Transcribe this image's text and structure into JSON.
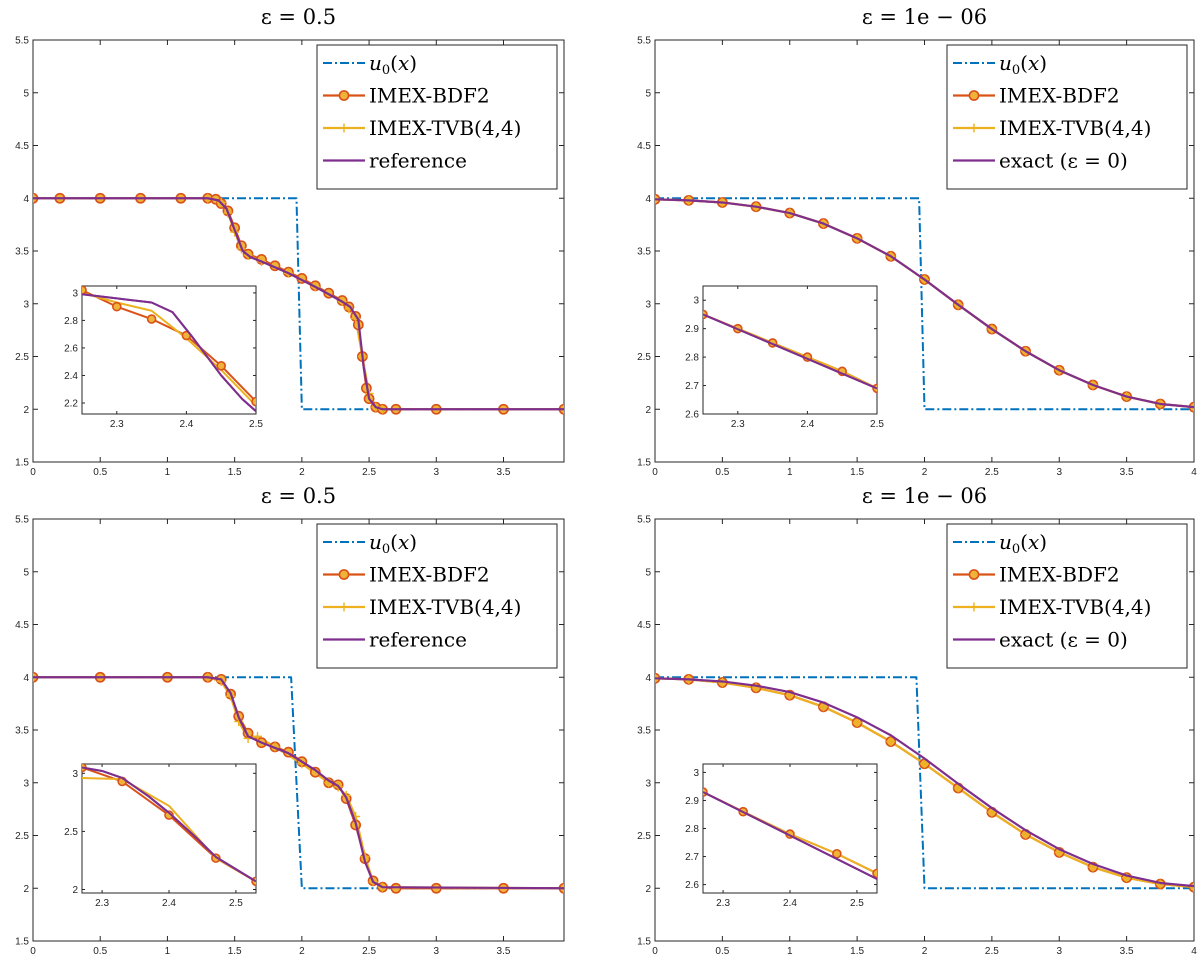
{
  "colors": {
    "u0": "#0072bd",
    "bdf2": "#d95319",
    "bdf2_marker_face": "#f0b33a",
    "tvb": "#edb120",
    "ref": "#7e2f8e"
  },
  "chart_data": [
    {
      "type": "line",
      "title": "ε = 0.5",
      "xlim": [
        0,
        3.95
      ],
      "ylim": [
        1.5,
        5.5
      ],
      "xticks": [
        0,
        0.5,
        1,
        1.5,
        2,
        2.5,
        3,
        3.5
      ],
      "yticks": [
        1.5,
        2,
        2.5,
        3,
        3.5,
        4,
        4.5,
        5,
        5.5
      ],
      "legend": {
        "position": "top-right",
        "entries": [
          "u0(x)",
          "IMEX-BDF2",
          "IMEX-TVB(4,4)",
          "reference"
        ]
      },
      "series": [
        {
          "name": "u0(x)",
          "style": "dashdot",
          "x": [
            0,
            1.96,
            1.96,
            2.0,
            2.0,
            3.95
          ],
          "y": [
            4,
            4,
            4,
            2,
            2,
            2
          ]
        },
        {
          "name": "IMEX-BDF2",
          "style": "line-circle",
          "x": [
            0,
            0.2,
            0.5,
            0.8,
            1.1,
            1.3,
            1.36,
            1.4,
            1.45,
            1.5,
            1.55,
            1.6,
            1.7,
            1.8,
            1.9,
            2.0,
            2.1,
            2.2,
            2.3,
            2.35,
            2.4,
            2.42,
            2.45,
            2.48,
            2.5,
            2.55,
            2.6,
            2.7,
            3.0,
            3.5,
            3.95
          ],
          "y": [
            4,
            4,
            4,
            4,
            4,
            4,
            3.99,
            3.95,
            3.88,
            3.72,
            3.55,
            3.47,
            3.42,
            3.36,
            3.3,
            3.24,
            3.17,
            3.1,
            3.03,
            2.97,
            2.88,
            2.8,
            2.5,
            2.2,
            2.1,
            2.02,
            2.0,
            2.0,
            2.0,
            2.0,
            2.0
          ]
        },
        {
          "name": "IMEX-TVB(4,4)",
          "style": "line-plus",
          "x": [
            0,
            1.3,
            1.4,
            1.45,
            1.5,
            1.55,
            1.6,
            1.7,
            1.9,
            2.1,
            2.3,
            2.35,
            2.4,
            2.45,
            2.5,
            2.55,
            2.6,
            3.95
          ],
          "y": [
            4,
            4,
            3.96,
            3.86,
            3.68,
            3.52,
            3.46,
            3.4,
            3.29,
            3.16,
            3.02,
            2.95,
            2.86,
            2.5,
            2.15,
            2.02,
            2.0,
            2.0
          ]
        },
        {
          "name": "reference",
          "style": "line",
          "x": [
            0,
            1.3,
            1.38,
            1.44,
            1.5,
            1.56,
            1.62,
            1.7,
            1.9,
            2.1,
            2.3,
            2.36,
            2.42,
            2.46,
            2.5,
            2.55,
            2.6,
            3.95
          ],
          "y": [
            4,
            4,
            3.98,
            3.9,
            3.7,
            3.5,
            3.44,
            3.4,
            3.29,
            3.16,
            3.02,
            2.97,
            2.85,
            2.4,
            2.1,
            2.02,
            2.0,
            2.0
          ]
        }
      ],
      "inset": {
        "xlim": [
          2.25,
          2.5
        ],
        "ylim": [
          2.12,
          3.05
        ],
        "xticks": [
          2.3,
          2.4,
          2.5
        ],
        "yticks": [
          2.2,
          2.4,
          2.6,
          2.8,
          3
        ],
        "series": [
          {
            "name": "IMEX-BDF2",
            "x": [
              2.25,
              2.3,
              2.35,
              2.4,
              2.45,
              2.5
            ],
            "y": [
              3.02,
              2.9,
              2.81,
              2.69,
              2.47,
              2.21
            ]
          },
          {
            "name": "IMEX-TVB(4,4)",
            "x": [
              2.25,
              2.3,
              2.35,
              2.4,
              2.45,
              2.5
            ],
            "y": [
              3.0,
              2.93,
              2.87,
              2.67,
              2.44,
              2.18
            ]
          },
          {
            "name": "reference",
            "x": [
              2.25,
              2.3,
              2.35,
              2.38,
              2.41,
              2.45,
              2.48,
              2.5
            ],
            "y": [
              2.99,
              2.96,
              2.93,
              2.86,
              2.67,
              2.4,
              2.23,
              2.14
            ]
          }
        ]
      }
    },
    {
      "type": "line",
      "title": "ε = 1e − 06",
      "xlim": [
        0,
        4
      ],
      "ylim": [
        1.5,
        5.5
      ],
      "xticks": [
        0,
        0.5,
        1,
        1.5,
        2,
        2.5,
        3,
        3.5,
        4
      ],
      "yticks": [
        1.5,
        2,
        2.5,
        3,
        3.5,
        4,
        4.5,
        5,
        5.5
      ],
      "legend": {
        "position": "top-right",
        "entries": [
          "u0(x)",
          "IMEX-BDF2",
          "IMEX-TVB(4,4)",
          "exact (ε = 0)"
        ]
      },
      "series": [
        {
          "name": "u0(x)",
          "style": "dashdot",
          "x": [
            0,
            1.96,
            1.96,
            2.0,
            2.0,
            4
          ],
          "y": [
            4,
            4,
            4,
            2,
            2,
            2
          ]
        },
        {
          "name": "IMEX-BDF2",
          "style": "line-circle",
          "x": [
            0,
            0.25,
            0.5,
            0.75,
            1.0,
            1.25,
            1.5,
            1.75,
            2.0,
            2.25,
            2.5,
            2.75,
            3.0,
            3.25,
            3.5,
            3.75,
            4.0
          ],
          "y": [
            3.99,
            3.98,
            3.96,
            3.92,
            3.86,
            3.76,
            3.62,
            3.45,
            3.23,
            2.99,
            2.76,
            2.55,
            2.37,
            2.23,
            2.12,
            2.05,
            2.02
          ]
        },
        {
          "name": "IMEX-TVB(4,4)",
          "style": "line-plus",
          "x": [
            0,
            0.25,
            0.5,
            0.75,
            1.0,
            1.25,
            1.5,
            1.75,
            2.0,
            2.25,
            2.5,
            2.75,
            3.0,
            3.25,
            3.5,
            3.75,
            4.0
          ],
          "y": [
            3.99,
            3.98,
            3.96,
            3.92,
            3.86,
            3.76,
            3.62,
            3.45,
            3.23,
            2.99,
            2.76,
            2.55,
            2.37,
            2.23,
            2.12,
            2.05,
            2.02
          ]
        },
        {
          "name": "exact (ε = 0)",
          "style": "line",
          "x": [
            0,
            0.25,
            0.5,
            0.75,
            1.0,
            1.25,
            1.5,
            1.75,
            2.0,
            2.25,
            2.5,
            2.75,
            3.0,
            3.25,
            3.5,
            3.75,
            4.0
          ],
          "y": [
            3.99,
            3.98,
            3.96,
            3.92,
            3.86,
            3.76,
            3.62,
            3.45,
            3.23,
            2.99,
            2.76,
            2.55,
            2.37,
            2.23,
            2.12,
            2.05,
            2.02
          ]
        }
      ],
      "inset": {
        "xlim": [
          2.25,
          2.5
        ],
        "ylim": [
          2.6,
          3.05
        ],
        "xticks": [
          2.3,
          2.4,
          2.5
        ],
        "yticks": [
          2.6,
          2.7,
          2.8,
          2.9,
          3
        ],
        "series": [
          {
            "name": "IMEX-BDF2",
            "x": [
              2.25,
              2.3,
              2.35,
              2.4,
              2.45,
              2.5
            ],
            "y": [
              2.95,
              2.9,
              2.85,
              2.8,
              2.75,
              2.69
            ]
          },
          {
            "name": "IMEX-TVB(4,4)",
            "x": [
              2.25,
              2.3,
              2.35,
              2.4,
              2.45,
              2.5
            ],
            "y": [
              2.95,
              2.9,
              2.85,
              2.8,
              2.75,
              2.69
            ]
          },
          {
            "name": "exact (ε = 0)",
            "x": [
              2.25,
              2.5
            ],
            "y": [
              2.95,
              2.69
            ]
          }
        ]
      }
    },
    {
      "type": "line",
      "title": "ε = 0.5",
      "xlim": [
        0,
        3.95
      ],
      "ylim": [
        1.5,
        5.5
      ],
      "xticks": [
        0,
        0.5,
        1,
        1.5,
        2,
        2.5,
        3,
        3.5
      ],
      "yticks": [
        1.5,
        2,
        2.5,
        3,
        3.5,
        4,
        4.5,
        5,
        5.5
      ],
      "legend": {
        "position": "top-right",
        "entries": [
          "u0(x)",
          "IMEX-BDF2",
          "IMEX-TVB(4,4)",
          "reference"
        ]
      },
      "series": [
        {
          "name": "u0(x)",
          "style": "dashdot",
          "x": [
            0,
            1.92,
            1.92,
            2.0,
            2.0,
            3.95
          ],
          "y": [
            4,
            4,
            4,
            2,
            2,
            2
          ]
        },
        {
          "name": "IMEX-BDF2",
          "style": "line-circle",
          "x": [
            0,
            0.5,
            1.0,
            1.3,
            1.4,
            1.47,
            1.53,
            1.6,
            1.7,
            1.8,
            1.9,
            2.0,
            2.1,
            2.2,
            2.27,
            2.33,
            2.4,
            2.47,
            2.53,
            2.6,
            2.7,
            3.0,
            3.5,
            3.95
          ],
          "y": [
            4,
            4,
            4,
            4,
            3.98,
            3.84,
            3.63,
            3.47,
            3.38,
            3.34,
            3.29,
            3.2,
            3.1,
            3.0,
            2.98,
            2.85,
            2.6,
            2.28,
            2.07,
            2.01,
            2.0,
            2.0,
            2.0,
            2.0
          ]
        },
        {
          "name": "IMEX-TVB(4,4)",
          "style": "line-plus",
          "x": [
            0,
            1.3,
            1.4,
            1.47,
            1.53,
            1.6,
            1.67,
            1.8,
            2.0,
            2.2,
            2.27,
            2.33,
            2.4,
            2.47,
            2.53,
            2.6,
            3.95
          ],
          "y": [
            4,
            4,
            3.96,
            3.82,
            3.58,
            3.42,
            3.44,
            3.34,
            3.18,
            3.0,
            2.96,
            2.88,
            2.68,
            2.3,
            2.06,
            2.01,
            2.0
          ]
        },
        {
          "name": "reference",
          "style": "line",
          "x": [
            0,
            1.3,
            1.4,
            1.47,
            1.53,
            1.6,
            1.7,
            1.9,
            2.1,
            2.2,
            2.27,
            2.33,
            2.4,
            2.47,
            2.53,
            2.6,
            3.95
          ],
          "y": [
            4,
            4,
            3.98,
            3.85,
            3.62,
            3.44,
            3.38,
            3.28,
            3.12,
            3.02,
            2.97,
            2.86,
            2.62,
            2.25,
            2.06,
            2.01,
            2.0
          ]
        }
      ],
      "inset": {
        "xlim": [
          2.27,
          2.53
        ],
        "ylim": [
          1.97,
          3.08
        ],
        "xticks": [
          2.3,
          2.4,
          2.5
        ],
        "yticks": [
          2,
          2.5,
          3
        ],
        "series": [
          {
            "name": "IMEX-BDF2",
            "x": [
              2.27,
              2.33,
              2.4,
              2.47,
              2.53
            ],
            "y": [
              3.05,
              2.93,
              2.64,
              2.27,
              2.07
            ]
          },
          {
            "name": "IMEX-TVB(4,4)",
            "x": [
              2.27,
              2.33,
              2.4,
              2.47,
              2.53
            ],
            "y": [
              2.96,
              2.95,
              2.72,
              2.27,
              2.07
            ]
          },
          {
            "name": "reference",
            "x": [
              2.27,
              2.3,
              2.33,
              2.37,
              2.4,
              2.44,
              2.47,
              2.53
            ],
            "y": [
              3.05,
              3.02,
              2.96,
              2.8,
              2.66,
              2.45,
              2.28,
              2.07
            ]
          }
        ]
      }
    },
    {
      "type": "line",
      "title": "ε = 1e − 06",
      "xlim": [
        0,
        4
      ],
      "ylim": [
        1.5,
        5.5
      ],
      "xticks": [
        0,
        0.5,
        1,
        1.5,
        2,
        2.5,
        3,
        3.5,
        4
      ],
      "yticks": [
        1.5,
        2,
        2.5,
        3,
        3.5,
        4,
        4.5,
        5,
        5.5
      ],
      "legend": {
        "position": "top-right",
        "entries": [
          "u0(x)",
          "IMEX-BDF2",
          "IMEX-TVB(4,4)",
          "exact (ε = 0)"
        ]
      },
      "series": [
        {
          "name": "u0(x)",
          "style": "dashdot",
          "x": [
            0,
            1.94,
            1.94,
            2.0,
            2.0,
            4
          ],
          "y": [
            4,
            4,
            4,
            2,
            2,
            2
          ]
        },
        {
          "name": "IMEX-BDF2",
          "style": "line-circle",
          "x": [
            0,
            0.25,
            0.5,
            0.75,
            1.0,
            1.25,
            1.5,
            1.75,
            2.0,
            2.25,
            2.5,
            2.75,
            3.0,
            3.25,
            3.5,
            3.75,
            4.0
          ],
          "y": [
            3.99,
            3.98,
            3.95,
            3.9,
            3.83,
            3.72,
            3.57,
            3.39,
            3.18,
            2.95,
            2.72,
            2.51,
            2.34,
            2.2,
            2.1,
            2.04,
            2.01
          ]
        },
        {
          "name": "IMEX-TVB(4,4)",
          "style": "line-plus",
          "x": [
            0,
            0.25,
            0.5,
            0.75,
            1.0,
            1.25,
            1.5,
            1.75,
            2.0,
            2.25,
            2.5,
            2.75,
            3.0,
            3.25,
            3.5,
            3.75,
            4.0
          ],
          "y": [
            3.99,
            3.98,
            3.95,
            3.9,
            3.83,
            3.72,
            3.57,
            3.39,
            3.18,
            2.95,
            2.72,
            2.51,
            2.34,
            2.2,
            2.1,
            2.04,
            2.01
          ]
        },
        {
          "name": "exact (ε = 0)",
          "style": "line",
          "x": [
            0,
            0.25,
            0.5,
            0.75,
            1.0,
            1.25,
            1.5,
            1.75,
            2.0,
            2.25,
            2.5,
            2.75,
            3.0,
            3.25,
            3.5,
            3.75,
            4.0
          ],
          "y": [
            3.99,
            3.98,
            3.96,
            3.92,
            3.86,
            3.76,
            3.62,
            3.45,
            3.23,
            2.99,
            2.76,
            2.55,
            2.37,
            2.23,
            2.12,
            2.05,
            2.02
          ]
        }
      ],
      "inset": {
        "xlim": [
          2.27,
          2.53
        ],
        "ylim": [
          2.57,
          3.03
        ],
        "xticks": [
          2.3,
          2.4,
          2.5
        ],
        "yticks": [
          2.6,
          2.7,
          2.8,
          2.9,
          3
        ],
        "series": [
          {
            "name": "IMEX-BDF2",
            "x": [
              2.27,
              2.33,
              2.4,
              2.47,
              2.53
            ],
            "y": [
              2.93,
              2.86,
              2.78,
              2.71,
              2.64
            ]
          },
          {
            "name": "IMEX-TVB(4,4)",
            "x": [
              2.27,
              2.33,
              2.4,
              2.47,
              2.53
            ],
            "y": [
              2.93,
              2.86,
              2.78,
              2.71,
              2.64
            ]
          },
          {
            "name": "exact (ε = 0)",
            "x": [
              2.27,
              2.53
            ],
            "y": [
              2.93,
              2.62
            ]
          }
        ]
      }
    }
  ]
}
